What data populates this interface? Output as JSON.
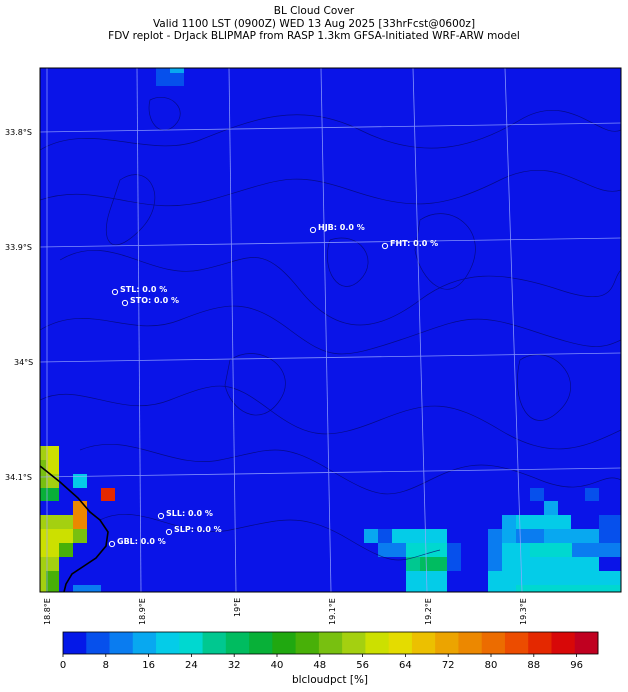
{
  "header": {
    "title": "BL Cloud Cover",
    "valid_line": "Valid 1100 LST (0900Z) WED 13 Aug 2025 [33hrFcst@0600z]",
    "source_line": "FDV replot - DrJack BLIPMAP from RASP 1.3km GFSA-Initiated WRF-ARW model"
  },
  "map": {
    "background_color": "#0a14e8",
    "lat_labels": [
      "33.8°S",
      "33.9°S",
      "34°S",
      "34.1°S"
    ],
    "lon_labels": [
      "18.8°E",
      "18.9°E",
      "19°E",
      "19.1°E",
      "19.2°E",
      "19.3°E"
    ],
    "stations": [
      {
        "code": "HJB",
        "label": "HJB: 0.0 %",
        "value": 0.0
      },
      {
        "code": "FHT",
        "label": "FHT: 0.0 %",
        "value": 0.0
      },
      {
        "code": "STL",
        "label": "STL: 0.0 %",
        "value": 0.0
      },
      {
        "code": "STO",
        "label": "STO: 0.0 %",
        "value": 0.0
      },
      {
        "code": "SLL",
        "label": "SLL: 0.0 %",
        "value": 0.0
      },
      {
        "code": "SLP",
        "label": "SLP: 0.0 %",
        "value": 0.0
      },
      {
        "code": "GBL",
        "label": "GBL: 0.0 %",
        "value": 0.0
      }
    ]
  },
  "colorbar": {
    "label": "blcloudpct [%]",
    "ticks": [
      "0",
      "8",
      "16",
      "24",
      "32",
      "40",
      "48",
      "56",
      "64",
      "72",
      "80",
      "88",
      "96"
    ],
    "min": 0,
    "max": 100,
    "colors": [
      "#0418e8",
      "#0650ec",
      "#0a7cf0",
      "#08a8f0",
      "#04cce8",
      "#00d8d0",
      "#00c890",
      "#00bc60",
      "#08b038",
      "#20a810",
      "#48b008",
      "#78c010",
      "#a4d010",
      "#cce000",
      "#e4dc00",
      "#ecc000",
      "#eca400",
      "#ec8800",
      "#ec6c00",
      "#ec4c00",
      "#e42800",
      "#d80808",
      "#c00020"
    ]
  }
}
